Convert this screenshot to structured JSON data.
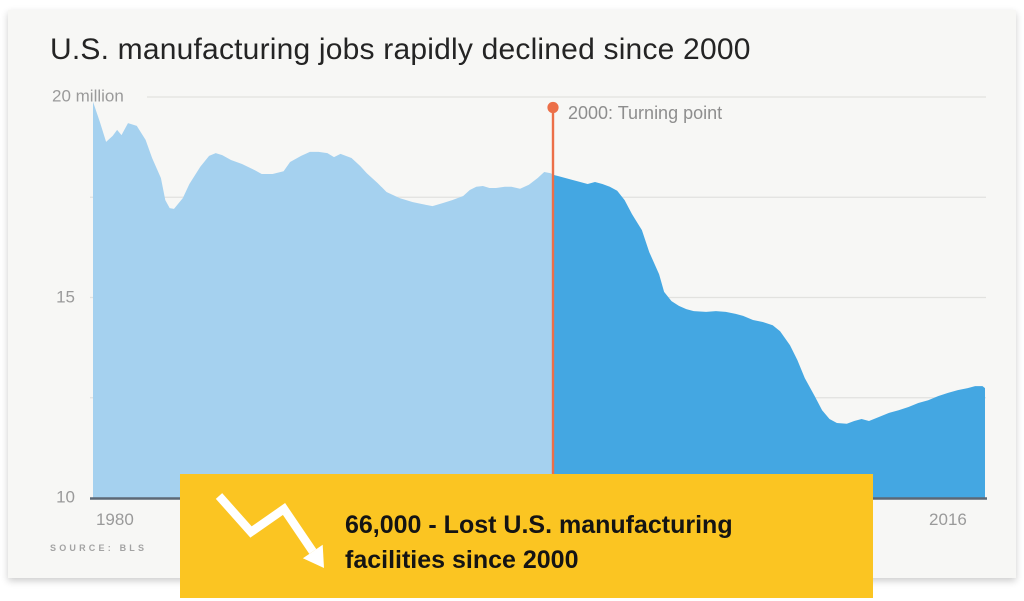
{
  "source": "SOURCE: BLS",
  "overlay": {
    "icon": "trend-down-arrow-icon",
    "line1": "66,000 - Lost U.S. manufacturing",
    "line2": "facilities since 2000"
  },
  "colors": {
    "panel": "#F7F7F5",
    "title": "#242424",
    "label": "#9A9A9A",
    "grid": "#E2E2DF",
    "axis": "#5C6876",
    "before": "#A5D1EF",
    "after": "#44A7E2",
    "marker": "#EC6F48",
    "banner": "#FBC522",
    "banner_text": "#141414"
  },
  "chart_data": {
    "type": "area",
    "title": "U.S. manufacturing jobs rapidly declined since 2000",
    "xlabel": "",
    "ylabel": "",
    "ylim": [
      10,
      20
    ],
    "xlim": [
      1979,
      2017.5
    ],
    "grid": true,
    "legend": false,
    "y_ticks": [
      {
        "value": 20,
        "label": "20 million"
      },
      {
        "value": 15,
        "label": "15"
      },
      {
        "value": 10,
        "label": "10"
      }
    ],
    "y_gridline_values": [
      20,
      17.5,
      15,
      12.5
    ],
    "x_ticks": [
      {
        "value": 1980,
        "label": "1980"
      },
      {
        "value": 2016,
        "label": "2016"
      }
    ],
    "annotation": {
      "label": "2000: Turning point",
      "year": 2000,
      "marker": "dot-with-vertical-line"
    },
    "series": [
      {
        "name": "before_2000",
        "color_key": "before",
        "points": [
          [
            1979.0,
            19.88
          ],
          [
            1979.3,
            19.4
          ],
          [
            1979.6,
            18.88
          ],
          [
            1979.9,
            19.03
          ],
          [
            1980.1,
            19.18
          ],
          [
            1980.3,
            19.05
          ],
          [
            1980.6,
            19.35
          ],
          [
            1981.0,
            19.28
          ],
          [
            1981.4,
            18.93
          ],
          [
            1981.7,
            18.48
          ],
          [
            1982.1,
            17.98
          ],
          [
            1982.3,
            17.43
          ],
          [
            1982.5,
            17.23
          ],
          [
            1982.7,
            17.21
          ],
          [
            1983.1,
            17.48
          ],
          [
            1983.4,
            17.83
          ],
          [
            1983.9,
            18.26
          ],
          [
            1984.3,
            18.53
          ],
          [
            1984.6,
            18.6
          ],
          [
            1984.9,
            18.55
          ],
          [
            1985.3,
            18.43
          ],
          [
            1985.8,
            18.33
          ],
          [
            1986.3,
            18.2
          ],
          [
            1986.7,
            18.08
          ],
          [
            1987.2,
            18.08
          ],
          [
            1987.7,
            18.15
          ],
          [
            1988.0,
            18.38
          ],
          [
            1988.5,
            18.53
          ],
          [
            1988.9,
            18.63
          ],
          [
            1989.3,
            18.63
          ],
          [
            1989.7,
            18.6
          ],
          [
            1990.0,
            18.5
          ],
          [
            1990.3,
            18.58
          ],
          [
            1990.8,
            18.48
          ],
          [
            1991.2,
            18.28
          ],
          [
            1991.5,
            18.1
          ],
          [
            1992.0,
            17.85
          ],
          [
            1992.4,
            17.63
          ],
          [
            1993.0,
            17.48
          ],
          [
            1993.6,
            17.38
          ],
          [
            1994.2,
            17.31
          ],
          [
            1994.5,
            17.28
          ],
          [
            1995.0,
            17.36
          ],
          [
            1995.4,
            17.43
          ],
          [
            1995.9,
            17.53
          ],
          [
            1996.2,
            17.68
          ],
          [
            1996.5,
            17.76
          ],
          [
            1996.8,
            17.78
          ],
          [
            1997.1,
            17.73
          ],
          [
            1997.4,
            17.73
          ],
          [
            1997.8,
            17.76
          ],
          [
            1998.1,
            17.76
          ],
          [
            1998.5,
            17.71
          ],
          [
            1998.9,
            17.81
          ],
          [
            1999.3,
            17.98
          ],
          [
            1999.6,
            18.13
          ],
          [
            1999.9,
            18.1
          ],
          [
            2000.0,
            18.06
          ]
        ]
      },
      {
        "name": "after_2000",
        "color_key": "after",
        "points": [
          [
            2000.0,
            18.06
          ],
          [
            2000.2,
            18.03
          ],
          [
            2000.5,
            17.98
          ],
          [
            2000.8,
            17.93
          ],
          [
            2001.1,
            17.88
          ],
          [
            2001.4,
            17.83
          ],
          [
            2001.7,
            17.88
          ],
          [
            2002.0,
            17.83
          ],
          [
            2002.3,
            17.76
          ],
          [
            2002.6,
            17.66
          ],
          [
            2002.9,
            17.43
          ],
          [
            2003.2,
            17.08
          ],
          [
            2003.6,
            16.68
          ],
          [
            2003.9,
            16.13
          ],
          [
            2004.3,
            15.58
          ],
          [
            2004.5,
            15.14
          ],
          [
            2004.8,
            14.91
          ],
          [
            2005.1,
            14.79
          ],
          [
            2005.4,
            14.71
          ],
          [
            2005.7,
            14.66
          ],
          [
            2006.2,
            14.64
          ],
          [
            2006.6,
            14.66
          ],
          [
            2007.0,
            14.64
          ],
          [
            2007.4,
            14.59
          ],
          [
            2007.7,
            14.54
          ],
          [
            2008.1,
            14.44
          ],
          [
            2008.5,
            14.39
          ],
          [
            2008.9,
            14.31
          ],
          [
            2009.2,
            14.16
          ],
          [
            2009.6,
            13.81
          ],
          [
            2009.9,
            13.44
          ],
          [
            2010.2,
            12.99
          ],
          [
            2010.6,
            12.54
          ],
          [
            2010.9,
            12.19
          ],
          [
            2011.2,
            11.97
          ],
          [
            2011.5,
            11.87
          ],
          [
            2011.9,
            11.85
          ],
          [
            2012.2,
            11.92
          ],
          [
            2012.5,
            11.97
          ],
          [
            2012.8,
            11.92
          ],
          [
            2013.2,
            12.02
          ],
          [
            2013.6,
            12.12
          ],
          [
            2014.0,
            12.19
          ],
          [
            2014.4,
            12.27
          ],
          [
            2014.8,
            12.37
          ],
          [
            2015.2,
            12.44
          ],
          [
            2015.6,
            12.54
          ],
          [
            2016.0,
            12.62
          ],
          [
            2016.4,
            12.69
          ],
          [
            2016.8,
            12.74
          ],
          [
            2017.1,
            12.79
          ],
          [
            2017.4,
            12.79
          ],
          [
            2017.5,
            12.74
          ]
        ]
      }
    ]
  }
}
